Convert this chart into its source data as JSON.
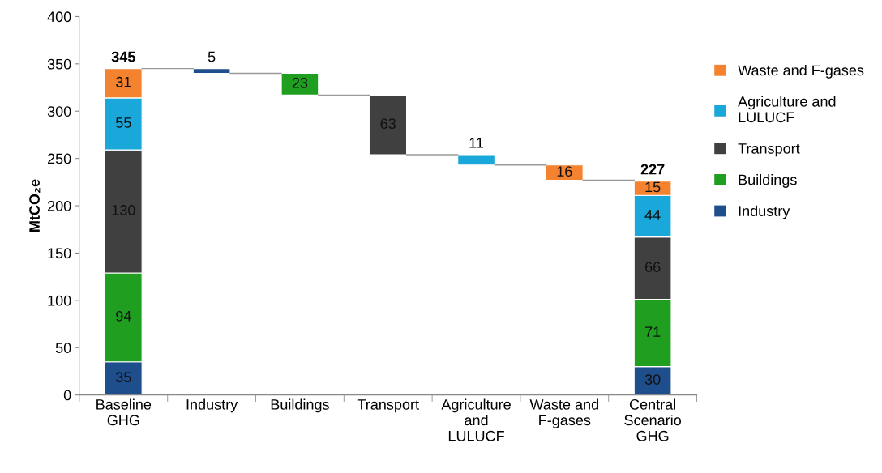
{
  "chart_data": {
    "type": "bar",
    "stacked": true,
    "ylabel": "MtCO₂e",
    "categories": [
      "Baseline\nGHG",
      "Industry",
      "Buildings",
      "Transport",
      "Agriculture\nand\nLULUCF",
      "Waste and\nF-gases",
      "Central\nScenario\nGHG"
    ],
    "series": [
      {
        "name": "Industry",
        "color": "#1f4e8c",
        "values": [
          35,
          5,
          null,
          null,
          null,
          null,
          30
        ],
        "base": [
          null,
          340,
          null,
          null,
          null,
          null,
          null
        ]
      },
      {
        "name": "Buildings",
        "color": "#1f9e1f",
        "values": [
          94,
          null,
          23,
          null,
          null,
          null,
          71
        ],
        "base": [
          null,
          null,
          317,
          null,
          null,
          null,
          null
        ]
      },
      {
        "name": "Transport",
        "color": "#404040",
        "values": [
          130,
          null,
          null,
          63,
          null,
          null,
          66
        ],
        "base": [
          null,
          null,
          null,
          254,
          null,
          null,
          null
        ]
      },
      {
        "name": "Agriculture and LULUCF",
        "color": "#1aa7d9",
        "values": [
          55,
          null,
          null,
          null,
          11,
          null,
          44
        ],
        "base": [
          null,
          null,
          null,
          null,
          243,
          null,
          null
        ]
      },
      {
        "name": "Waste and F-gases",
        "color": "#f5822f",
        "values": [
          31,
          null,
          null,
          null,
          null,
          16,
          15
        ],
        "base": [
          null,
          null,
          null,
          null,
          null,
          227,
          null
        ]
      }
    ],
    "totals": [
      "345",
      null,
      null,
      null,
      null,
      null,
      "227"
    ],
    "data_labels": true,
    "ylim": [
      0,
      400
    ],
    "yticks": [
      0,
      50,
      100,
      150,
      200,
      250,
      300,
      350,
      400
    ],
    "grid": false,
    "legend": "right"
  }
}
